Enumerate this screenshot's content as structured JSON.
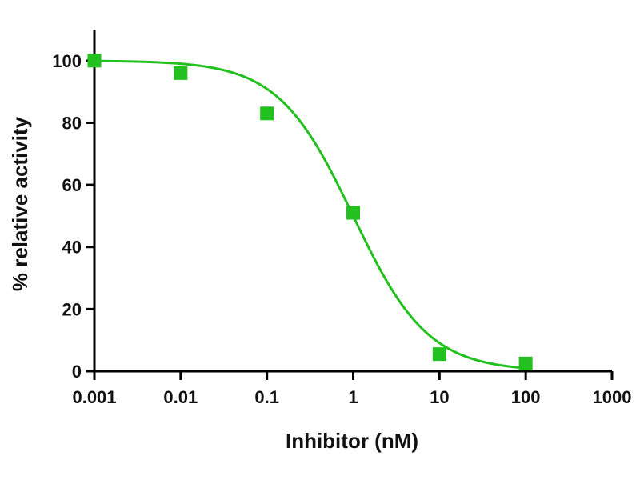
{
  "chart_data": {
    "type": "scatter",
    "xlabel": "Inhibitor (nM)",
    "ylabel": "% relative activity",
    "x_scale": "log",
    "xlim": [
      0.001,
      1000
    ],
    "ylim": [
      0,
      110
    ],
    "x_ticks": [
      "0.001",
      "0.01",
      "0.1",
      "1",
      "10",
      "100",
      "1000"
    ],
    "y_ticks": [
      "0",
      "20",
      "40",
      "60",
      "80",
      "100"
    ],
    "grid": false,
    "legend": "none",
    "colors": {
      "series": "#22c11f",
      "axis": "#000000"
    },
    "series": [
      {
        "marker": "square",
        "x": [
          0.001,
          0.01,
          0.1,
          1,
          10,
          100
        ],
        "y": [
          100,
          96,
          83,
          51,
          5.5,
          2.5
        ]
      }
    ],
    "fit_curve": {
      "model": "four-parameter logistic",
      "top": 100,
      "bottom": 0,
      "ic50": 1,
      "hill_slope": 1
    }
  }
}
